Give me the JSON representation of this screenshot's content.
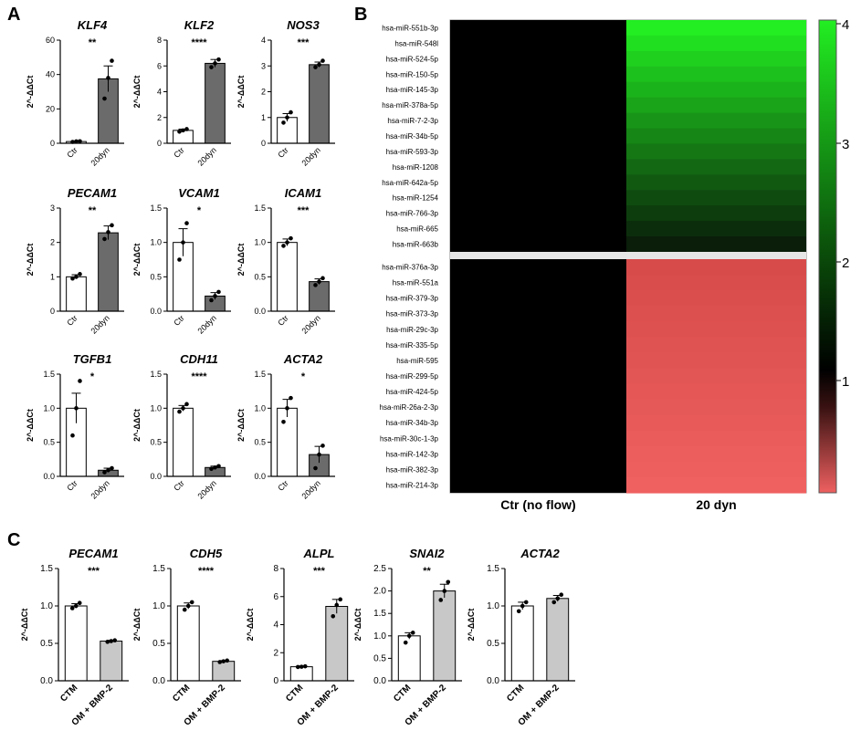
{
  "panel_labels": {
    "a": "A",
    "b": "B",
    "c": "C"
  },
  "chart_data": [
    {
      "type": "bar",
      "panel": "A",
      "title": "KLF4",
      "ylabel": "2^-ΔΔCt",
      "categories": [
        "Ctr",
        "20dyn"
      ],
      "values": [
        1.0,
        37.5
      ],
      "error": [
        0.3,
        7.5
      ],
      "points": [
        [
          0.8,
          1.1,
          1.2
        ],
        [
          26,
          38,
          48
        ]
      ],
      "significance": "**",
      "ylim": [
        0,
        60
      ],
      "yticks": [
        0,
        20,
        40,
        60
      ],
      "ytick_labels": [
        "0",
        "20",
        "40",
        "60"
      ],
      "colors": [
        "#ffffff",
        "#6b6b6b"
      ]
    },
    {
      "type": "bar",
      "panel": "A",
      "title": "KLF2",
      "ylabel": "2^-ΔΔCt",
      "categories": [
        "Ctr",
        "20dyn"
      ],
      "values": [
        1.0,
        6.2
      ],
      "error": [
        0.1,
        0.3
      ],
      "points": [
        [
          0.9,
          1.0,
          1.1
        ],
        [
          5.9,
          6.2,
          6.5
        ]
      ],
      "significance": "****",
      "ylim": [
        0,
        8
      ],
      "yticks": [
        0,
        2,
        4,
        6,
        8
      ],
      "ytick_labels": [
        "0",
        "2",
        "4",
        "6",
        "8"
      ],
      "colors": [
        "#ffffff",
        "#6b6b6b"
      ]
    },
    {
      "type": "bar",
      "panel": "A",
      "title": "NOS3",
      "ylabel": "2^-ΔΔCt",
      "categories": [
        "Ctr",
        "20dyn"
      ],
      "values": [
        1.0,
        3.05
      ],
      "error": [
        0.15,
        0.1
      ],
      "points": [
        [
          0.8,
          1.0,
          1.2
        ],
        [
          2.95,
          3.05,
          3.2
        ]
      ],
      "significance": "***",
      "ylim": [
        0,
        4
      ],
      "yticks": [
        0,
        1,
        2,
        3,
        4
      ],
      "ytick_labels": [
        "0",
        "1",
        "2",
        "3",
        "4"
      ],
      "colors": [
        "#ffffff",
        "#6b6b6b"
      ]
    },
    {
      "type": "bar",
      "panel": "A",
      "title": "PECAM1",
      "ylabel": "2^-ΔΔCt",
      "categories": [
        "Ctr",
        "20dyn"
      ],
      "values": [
        1.0,
        2.28
      ],
      "error": [
        0.06,
        0.2
      ],
      "points": [
        [
          0.95,
          1.0,
          1.08
        ],
        [
          2.1,
          2.3,
          2.5
        ]
      ],
      "significance": "**",
      "ylim": [
        0,
        3
      ],
      "yticks": [
        0,
        1,
        2,
        3
      ],
      "ytick_labels": [
        "0",
        "1",
        "2",
        "3"
      ],
      "colors": [
        "#ffffff",
        "#6b6b6b"
      ]
    },
    {
      "type": "bar",
      "panel": "A",
      "title": "VCAM1",
      "ylabel": "2^-ΔΔCt",
      "categories": [
        "Ctr",
        "20dyn"
      ],
      "values": [
        1.0,
        0.22
      ],
      "error": [
        0.2,
        0.05
      ],
      "points": [
        [
          0.75,
          1.0,
          1.28
        ],
        [
          0.16,
          0.22,
          0.28
        ]
      ],
      "significance": "*",
      "ylim": [
        0,
        1.5
      ],
      "yticks": [
        0,
        0.5,
        1.0,
        1.5
      ],
      "ytick_labels": [
        "0.0",
        "0.5",
        "1.0",
        "1.5"
      ],
      "colors": [
        "#ffffff",
        "#6b6b6b"
      ]
    },
    {
      "type": "bar",
      "panel": "A",
      "title": "ICAM1",
      "ylabel": "2^-ΔΔCt",
      "categories": [
        "Ctr",
        "20dyn"
      ],
      "values": [
        1.0,
        0.43
      ],
      "error": [
        0.05,
        0.04
      ],
      "points": [
        [
          0.95,
          1.0,
          1.06
        ],
        [
          0.38,
          0.43,
          0.48
        ]
      ],
      "significance": "***",
      "ylim": [
        0,
        1.5
      ],
      "yticks": [
        0,
        0.5,
        1.0,
        1.5
      ],
      "ytick_labels": [
        "0.0",
        "0.5",
        "1.0",
        "1.5"
      ],
      "colors": [
        "#ffffff",
        "#6b6b6b"
      ]
    },
    {
      "type": "bar",
      "panel": "A",
      "title": "TGFB1",
      "ylabel": "2^-ΔΔCt",
      "categories": [
        "Ctr",
        "20dyn"
      ],
      "values": [
        1.0,
        0.09
      ],
      "error": [
        0.22,
        0.03
      ],
      "points": [
        [
          0.6,
          1.0,
          1.4
        ],
        [
          0.06,
          0.09,
          0.12
        ]
      ],
      "significance": "*",
      "ylim": [
        0,
        1.5
      ],
      "yticks": [
        0,
        0.5,
        1.0,
        1.5
      ],
      "ytick_labels": [
        "0.0",
        "0.5",
        "1.0",
        "1.5"
      ],
      "colors": [
        "#ffffff",
        "#6b6b6b"
      ]
    },
    {
      "type": "bar",
      "panel": "A",
      "title": "CDH11",
      "ylabel": "2^-ΔΔCt",
      "categories": [
        "Ctr",
        "20dyn"
      ],
      "values": [
        1.0,
        0.13
      ],
      "error": [
        0.04,
        0.02
      ],
      "points": [
        [
          0.95,
          1.0,
          1.06
        ],
        [
          0.11,
          0.13,
          0.15
        ]
      ],
      "significance": "****",
      "ylim": [
        0,
        1.5
      ],
      "yticks": [
        0,
        0.5,
        1.0,
        1.5
      ],
      "ytick_labels": [
        "0.0",
        "0.5",
        "1.0",
        "1.5"
      ],
      "colors": [
        "#ffffff",
        "#6b6b6b"
      ]
    },
    {
      "type": "bar",
      "panel": "A",
      "title": "ACTA2",
      "ylabel": "2^-ΔΔCt",
      "categories": [
        "Ctr",
        "20dyn"
      ],
      "values": [
        1.0,
        0.32
      ],
      "error": [
        0.13,
        0.12
      ],
      "points": [
        [
          0.8,
          1.0,
          1.15
        ],
        [
          0.12,
          0.32,
          0.45
        ]
      ],
      "significance": "*",
      "ylim": [
        0,
        1.5
      ],
      "yticks": [
        0,
        0.5,
        1.0,
        1.5
      ],
      "ytick_labels": [
        "0.0",
        "0.5",
        "1.0",
        "1.5"
      ],
      "colors": [
        "#ffffff",
        "#6b6b6b"
      ]
    },
    {
      "type": "heatmap",
      "panel": "B",
      "columns": [
        "Ctr (no flow)",
        "20 dyn"
      ],
      "rows_up": [
        "hsa-miR-551b-3p",
        "hsa-miR-548l",
        "hsa-miR-524-5p",
        "hsa-miR-150-5p",
        "hsa-miR-145-3p",
        "hsa-miR-378a-5p",
        "hsa-miR-7-2-3p",
        "hsa-miR-34b-5p",
        "hsa-miR-593-3p",
        "hsa-miR-1208",
        "hsa-miR-642a-5p",
        "hsa-miR-1254",
        "hsa-miR-766-3p",
        "hsa-miR-665",
        "hsa-miR-663b"
      ],
      "rows_down": [
        "hsa-miR-376a-3p",
        "hsa-miR-551a",
        "hsa-miR-379-3p",
        "hsa-miR-373-3p",
        "hsa-miR-29c-3p",
        "hsa-miR-335-5p",
        "hsa-miR-595",
        "hsa-miR-299-5p",
        "hsa-miR-424-5p",
        "hsa-miR-26a-2-3p",
        "hsa-miR-34b-3p",
        "hsa-miR-30c-1-3p",
        "hsa-miR-142-3p",
        "hsa-miR-382-3p",
        "hsa-miR-214-3p"
      ],
      "colorbar_ticks": [
        "4",
        "3",
        "2",
        "1"
      ],
      "colors": {
        "high": "#22ee22",
        "mid": "#000000",
        "low": "#ef6060"
      }
    },
    {
      "type": "bar",
      "panel": "C",
      "title": "PECAM1",
      "ylabel": "2^-ΔΔCt",
      "categories": [
        "CTM",
        "OM + BMP-2"
      ],
      "values": [
        1.0,
        0.53
      ],
      "error": [
        0.03,
        0.01
      ],
      "points": [
        [
          0.97,
          1.0,
          1.04
        ],
        [
          0.52,
          0.53,
          0.54
        ]
      ],
      "significance": "***",
      "ylim": [
        0,
        1.5
      ],
      "yticks": [
        0,
        0.5,
        1.0,
        1.5
      ],
      "ytick_labels": [
        "0.0",
        "0.5",
        "1.0",
        "1.5"
      ],
      "colors": [
        "#ffffff",
        "#c8c8c8"
      ]
    },
    {
      "type": "bar",
      "panel": "C",
      "title": "CDH5",
      "ylabel": "2^-ΔΔCt",
      "categories": [
        "CTM",
        "OM + BMP-2"
      ],
      "values": [
        1.0,
        0.26
      ],
      "error": [
        0.04,
        0.01
      ],
      "points": [
        [
          0.95,
          1.0,
          1.05
        ],
        [
          0.25,
          0.26,
          0.27
        ]
      ],
      "significance": "****",
      "ylim": [
        0,
        1.5
      ],
      "yticks": [
        0,
        0.5,
        1.0,
        1.5
      ],
      "ytick_labels": [
        "0.0",
        "0.5",
        "1.0",
        "1.5"
      ],
      "colors": [
        "#ffffff",
        "#c8c8c8"
      ]
    },
    {
      "type": "bar",
      "panel": "C",
      "title": "ALPL",
      "ylabel": "2^-ΔΔCt",
      "categories": [
        "CTM",
        "OM + BMP-2"
      ],
      "values": [
        1.0,
        5.3
      ],
      "error": [
        0.05,
        0.5
      ],
      "points": [
        [
          0.98,
          1.0,
          1.03
        ],
        [
          4.6,
          5.4,
          5.8
        ]
      ],
      "significance": "***",
      "ylim": [
        0,
        8
      ],
      "yticks": [
        0,
        2,
        4,
        6,
        8
      ],
      "ytick_labels": [
        "0",
        "2",
        "4",
        "6",
        "8"
      ],
      "colors": [
        "#ffffff",
        "#c8c8c8"
      ]
    },
    {
      "type": "bar",
      "panel": "C",
      "title": "SNAI2",
      "ylabel": "2^-ΔΔCt",
      "categories": [
        "CTM",
        "OM + BMP-2"
      ],
      "values": [
        1.0,
        2.0
      ],
      "error": [
        0.07,
        0.15
      ],
      "points": [
        [
          0.85,
          1.0,
          1.07
        ],
        [
          1.8,
          2.0,
          2.2
        ]
      ],
      "significance": "**",
      "ylim": [
        0,
        2.5
      ],
      "yticks": [
        0,
        0.5,
        1.0,
        1.5,
        2.0,
        2.5
      ],
      "ytick_labels": [
        "0.0",
        "0.5",
        "1.0",
        "1.5",
        "2.0",
        "2.5"
      ],
      "colors": [
        "#ffffff",
        "#c8c8c8"
      ]
    },
    {
      "type": "bar",
      "panel": "C",
      "title": "ACTA2",
      "ylabel": "2^-ΔΔCt",
      "categories": [
        "CTM",
        "OM + BMP-2"
      ],
      "values": [
        1.0,
        1.1
      ],
      "error": [
        0.05,
        0.04
      ],
      "points": [
        [
          0.93,
          1.0,
          1.05
        ],
        [
          1.05,
          1.1,
          1.15
        ]
      ],
      "significance": "",
      "ylim": [
        0,
        1.5
      ],
      "yticks": [
        0,
        0.5,
        1.0,
        1.5
      ],
      "ytick_labels": [
        "0.0",
        "0.5",
        "1.0",
        "1.5"
      ],
      "colors": [
        "#ffffff",
        "#c8c8c8"
      ]
    }
  ]
}
